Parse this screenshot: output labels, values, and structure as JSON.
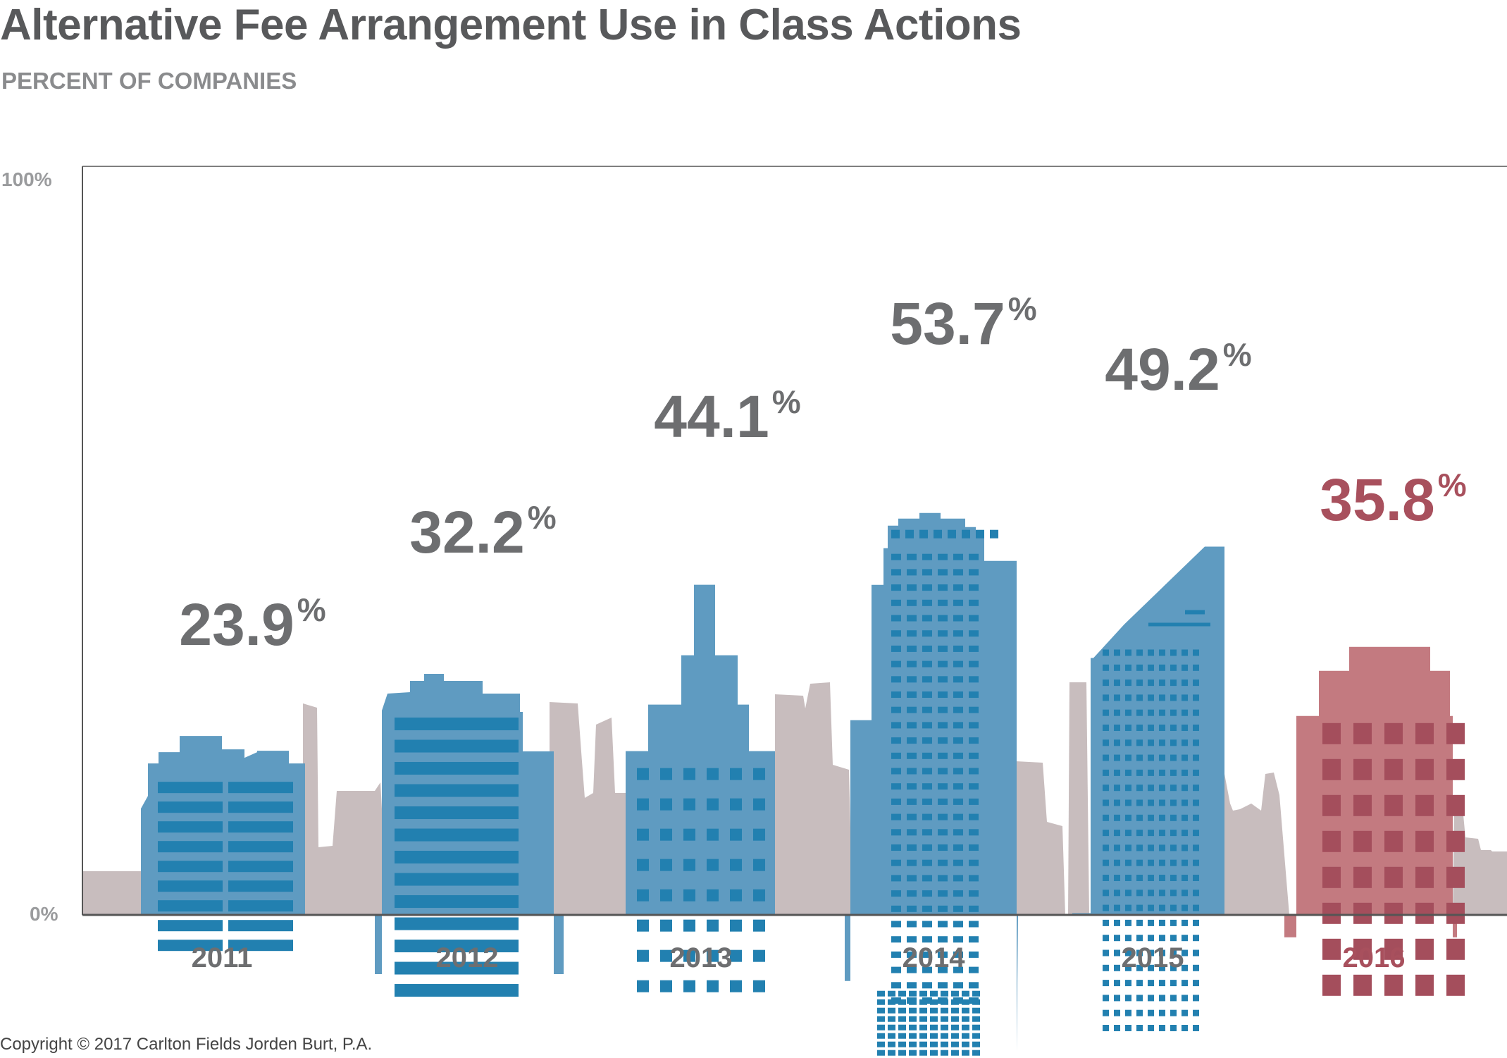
{
  "chart_data": {
    "type": "bar",
    "title": "Alternative Fee Arrangement Use in Class Actions",
    "subtitle": "PERCENT OF COMPANIES",
    "categories": [
      "2011",
      "2012",
      "2013",
      "2014",
      "2015",
      "2016"
    ],
    "values": [
      23.9,
      32.2,
      44.1,
      53.7,
      49.2,
      35.8
    ],
    "value_labels": [
      "23.9",
      "32.2",
      "44.1",
      "53.7",
      "49.2",
      "35.8"
    ],
    "value_suffix": "%",
    "ylim": [
      0,
      100
    ],
    "yticks": [
      "0%",
      "100%"
    ],
    "grid": false,
    "highlight_category": "2016"
  },
  "colors": {
    "bar": "#5f9bc1",
    "window": "#2280b0",
    "highlight_bar": "#c37a80",
    "highlight_window": "#a44e5c",
    "highlight_text": "#a8505d",
    "skyline": "#c8bdbe",
    "text": "#6d6e70",
    "axis": "#555555"
  },
  "footer": {
    "copyright": "Copyright © 2017 Carlton Fields Jorden Burt, P.A."
  }
}
